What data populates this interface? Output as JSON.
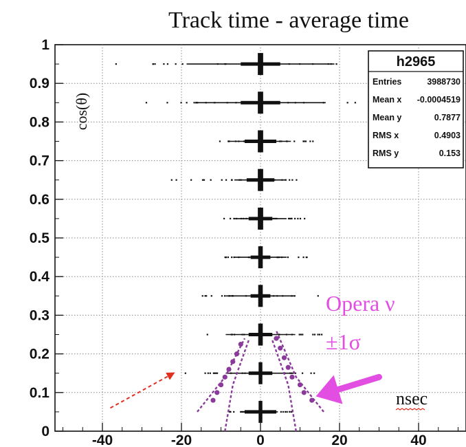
{
  "chart_data": {
    "type": "scatter",
    "title": "Track time - average time",
    "ylabel": "cos(θ)",
    "xlabel": "nsec",
    "xlim": [
      -52,
      52
    ],
    "ylim": [
      0,
      1
    ],
    "x_ticks": [
      -40,
      -20,
      0,
      20,
      40
    ],
    "y_ticks": [
      0,
      0.1,
      0.2,
      0.3,
      0.4,
      0.5,
      0.6,
      0.7,
      0.8,
      0.9,
      1
    ],
    "grid": true,
    "series": [
      {
        "values": [
          {
            "y": 0.95,
            "core": 0.5,
            "dense": 5,
            "sparse": 34,
            "sparse_min": -38
          },
          {
            "y": 0.85,
            "core": 0.5,
            "dense": 5,
            "sparse": 30,
            "sparse_min": -30
          },
          {
            "y": 0.75,
            "core": 0.5,
            "dense": 4,
            "sparse": 14,
            "sparse_min": -11
          },
          {
            "y": 0.65,
            "core": 0.5,
            "dense": 3.5,
            "sparse": 12,
            "sparse_min": -26
          },
          {
            "y": 0.55,
            "core": 0.5,
            "dense": 3,
            "sparse": 12,
            "sparse_min": -10
          },
          {
            "y": 0.45,
            "core": 0.4,
            "dense": 2.5,
            "sparse": 12,
            "sparse_min": -12
          },
          {
            "y": 0.35,
            "core": 0.4,
            "dense": 2.5,
            "sparse": 16,
            "sparse_min": -16
          },
          {
            "y": 0.25,
            "core": 0.4,
            "dense": 3,
            "sparse": 16,
            "sparse_min": -16
          },
          {
            "y": 0.15,
            "core": 0.3,
            "dense": 3,
            "sparse": 16,
            "sparse_min": -21
          },
          {
            "y": 0.05,
            "core": 0.3,
            "dense": 4,
            "sparse": 8,
            "sparse_min": -10
          }
        ]
      }
    ],
    "stats_box": {
      "name": "h2965",
      "rows": [
        {
          "label": "Entries",
          "value": "3988730"
        },
        {
          "label": "Mean x",
          "value": "-0.0004519"
        },
        {
          "label": "Mean y",
          "value": "0.7877"
        },
        {
          "label": "RMS x",
          "value": "0.4903"
        },
        {
          "label": "RMS y",
          "value": "0.153"
        }
      ]
    },
    "annotations": {
      "overlay_label_1": "Opera ν",
      "overlay_label_2": "±1σ",
      "overlay_color": "#e14ee1",
      "band_color": "#8a3a9a",
      "arrow_color": "#e14ee1",
      "red_arrow_color": "#e03020",
      "red_arrow_from": {
        "x": -38,
        "y": 0.06
      },
      "red_arrow_to": {
        "x": -22,
        "y": 0.15
      },
      "band_outer_left": [
        [
          -16,
          0.05
        ],
        [
          -9,
          0.14
        ],
        [
          -4,
          0.24
        ]
      ],
      "band_inner_left": [
        [
          -9,
          0.0
        ],
        [
          -7,
          0.12
        ],
        [
          -3,
          0.235
        ]
      ],
      "band_outer_right": [
        [
          16,
          0.05
        ],
        [
          9,
          0.14
        ],
        [
          4,
          0.26
        ]
      ],
      "band_inner_right": [
        [
          9,
          0.0
        ],
        [
          7,
          0.12
        ],
        [
          3,
          0.235
        ]
      ],
      "dots_left": [
        [
          -5,
          0.225
        ],
        [
          -6,
          0.2
        ],
        [
          -7,
          0.18
        ],
        [
          -8,
          0.16
        ],
        [
          -9,
          0.14
        ],
        [
          -10,
          0.12
        ],
        [
          -11,
          0.1
        ],
        [
          -12,
          0.08
        ]
      ],
      "dots_right": [
        [
          4,
          0.24
        ],
        [
          5,
          0.215
        ],
        [
          6,
          0.19
        ],
        [
          7,
          0.165
        ],
        [
          8,
          0.14
        ],
        [
          10,
          0.12
        ],
        [
          11,
          0.1
        ],
        [
          13,
          0.08
        ]
      ],
      "thick_arrow_tail": {
        "x": 30,
        "y": 0.14
      },
      "thick_arrow_head": {
        "x": 14,
        "y": 0.09
      }
    }
  }
}
